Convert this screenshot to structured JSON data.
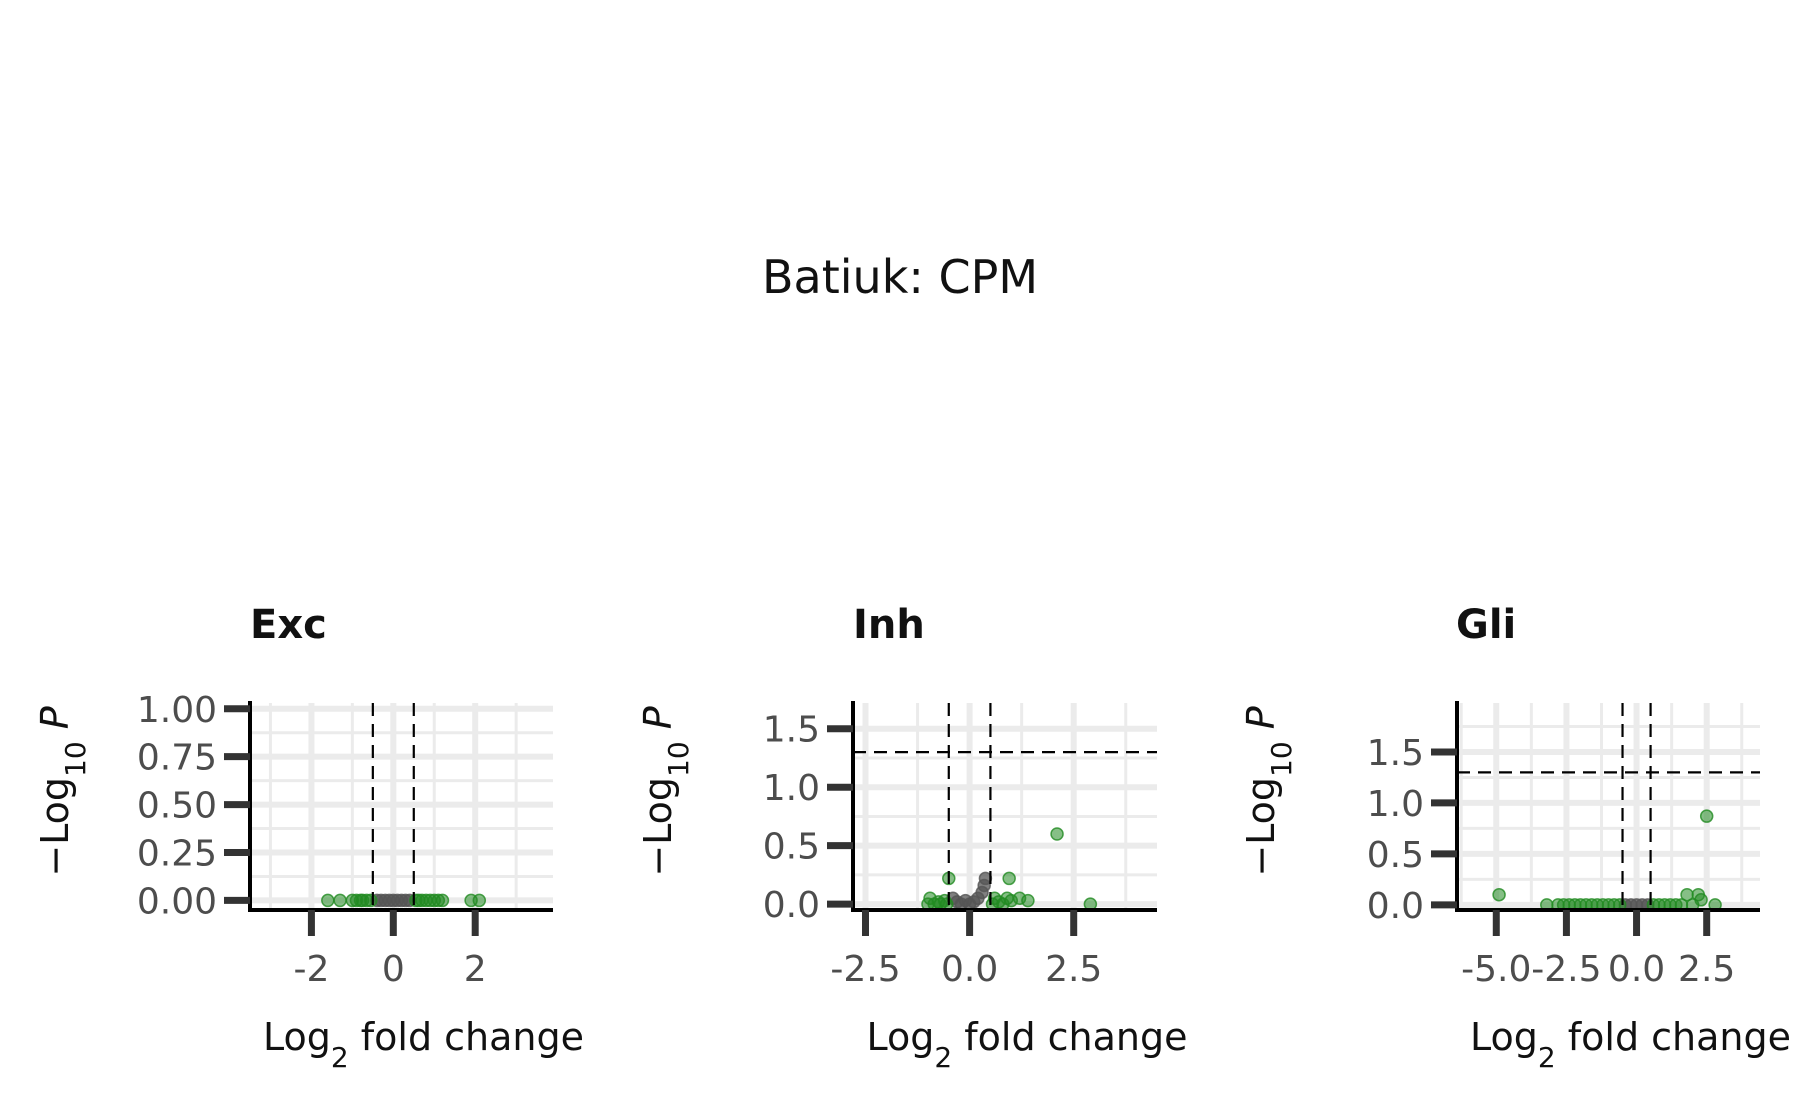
{
  "title": "Batiuk: CPM",
  "colors": {
    "significant": "#228B22",
    "not_significant": "#555555",
    "grid": "#ebebeb",
    "axis": "#000000",
    "tick": "#333333",
    "tick_label": "#4d4d4d",
    "threshold_line": "#000000"
  },
  "chart_data": [
    {
      "type": "scatter",
      "title": "Exc",
      "xlabel": "Log2 fold change",
      "ylabel": "-Log10 P",
      "xlim": [
        -3.5,
        3.9
      ],
      "ylim": [
        -0.05,
        1.03
      ],
      "xticks": [
        -2,
        0,
        2
      ],
      "xtick_labels": [
        "-2",
        "0",
        "2"
      ],
      "yticks": [
        0,
        0.25,
        0.5,
        0.75,
        1.0
      ],
      "ytick_labels": [
        "0.00",
        "0.25",
        "0.50",
        "0.75",
        "1.00"
      ],
      "fc_cutoff": 0.5,
      "p_cutoff_line": null,
      "grid": true,
      "points": [
        {
          "x": -1.6,
          "y": 0,
          "sig": true
        },
        {
          "x": -1.3,
          "y": 0,
          "sig": true
        },
        {
          "x": -1.0,
          "y": 0,
          "sig": true
        },
        {
          "x": -0.9,
          "y": 0,
          "sig": true
        },
        {
          "x": -0.8,
          "y": 0,
          "sig": true
        },
        {
          "x": -0.75,
          "y": 0,
          "sig": true
        },
        {
          "x": -0.65,
          "y": 0,
          "sig": true
        },
        {
          "x": -0.55,
          "y": 0,
          "sig": true
        },
        {
          "x": -0.4,
          "y": 0,
          "sig": false
        },
        {
          "x": -0.3,
          "y": 0,
          "sig": false
        },
        {
          "x": -0.2,
          "y": 0,
          "sig": false
        },
        {
          "x": -0.1,
          "y": 0,
          "sig": false
        },
        {
          "x": 0.0,
          "y": 0,
          "sig": false
        },
        {
          "x": 0.1,
          "y": 0,
          "sig": false
        },
        {
          "x": 0.2,
          "y": 0,
          "sig": false
        },
        {
          "x": 0.3,
          "y": 0,
          "sig": false
        },
        {
          "x": 0.4,
          "y": 0,
          "sig": false
        },
        {
          "x": 0.55,
          "y": 0,
          "sig": true
        },
        {
          "x": 0.62,
          "y": 0,
          "sig": true
        },
        {
          "x": 0.7,
          "y": 0,
          "sig": true
        },
        {
          "x": 0.8,
          "y": 0,
          "sig": true
        },
        {
          "x": 0.9,
          "y": 0,
          "sig": true
        },
        {
          "x": 1.0,
          "y": 0,
          "sig": true
        },
        {
          "x": 1.1,
          "y": 0,
          "sig": true
        },
        {
          "x": 1.2,
          "y": 0,
          "sig": true
        },
        {
          "x": 1.9,
          "y": 0,
          "sig": true
        },
        {
          "x": 2.1,
          "y": 0,
          "sig": true
        }
      ]
    },
    {
      "type": "scatter",
      "title": "Inh",
      "xlabel": "Log2 fold change",
      "ylabel": "-Log10 P",
      "xlim": [
        -2.8,
        4.5
      ],
      "ylim": [
        -0.05,
        1.72
      ],
      "xticks": [
        -2.5,
        0,
        2.5
      ],
      "xtick_labels": [
        "-2.5",
        "0.0",
        "2.5"
      ],
      "yticks": [
        0,
        0.5,
        1.0,
        1.5
      ],
      "ytick_labels": [
        "0.0",
        "0.5",
        "1.0",
        "1.5"
      ],
      "fc_cutoff": 0.5,
      "p_cutoff_line": 1.3,
      "grid": true,
      "points": [
        {
          "x": -1.0,
          "y": 0.0,
          "sig": true
        },
        {
          "x": -0.95,
          "y": 0.05,
          "sig": true
        },
        {
          "x": -0.85,
          "y": 0.0,
          "sig": true
        },
        {
          "x": -0.75,
          "y": 0.02,
          "sig": true
        },
        {
          "x": -0.7,
          "y": 0.0,
          "sig": true
        },
        {
          "x": -0.6,
          "y": 0.03,
          "sig": true
        },
        {
          "x": -0.55,
          "y": 0.0,
          "sig": true
        },
        {
          "x": -0.5,
          "y": 0.22,
          "sig": true
        },
        {
          "x": -0.4,
          "y": 0.05,
          "sig": false
        },
        {
          "x": -0.3,
          "y": 0.02,
          "sig": false
        },
        {
          "x": -0.2,
          "y": 0.0,
          "sig": false
        },
        {
          "x": -0.1,
          "y": 0.03,
          "sig": false
        },
        {
          "x": 0.0,
          "y": 0.0,
          "sig": false
        },
        {
          "x": 0.1,
          "y": 0.02,
          "sig": false
        },
        {
          "x": 0.2,
          "y": 0.05,
          "sig": false
        },
        {
          "x": 0.3,
          "y": 0.1,
          "sig": false
        },
        {
          "x": 0.35,
          "y": 0.16,
          "sig": false
        },
        {
          "x": 0.38,
          "y": 0.22,
          "sig": false
        },
        {
          "x": 0.55,
          "y": 0.0,
          "sig": true
        },
        {
          "x": 0.6,
          "y": 0.05,
          "sig": true
        },
        {
          "x": 0.7,
          "y": 0.02,
          "sig": true
        },
        {
          "x": 0.8,
          "y": 0.0,
          "sig": true
        },
        {
          "x": 0.9,
          "y": 0.05,
          "sig": true
        },
        {
          "x": 1.0,
          "y": 0.03,
          "sig": true
        },
        {
          "x": 0.95,
          "y": 0.22,
          "sig": true
        },
        {
          "x": 1.2,
          "y": 0.05,
          "sig": true
        },
        {
          "x": 1.4,
          "y": 0.03,
          "sig": true
        },
        {
          "x": 2.1,
          "y": 0.6,
          "sig": true
        },
        {
          "x": 2.9,
          "y": 0.0,
          "sig": true
        }
      ]
    },
    {
      "type": "scatter",
      "title": "Gli",
      "xlabel": "Log2 fold change",
      "ylabel": "-Log10 P",
      "xlim": [
        -6.4,
        4.4
      ],
      "ylim": [
        -0.05,
        1.98
      ],
      "xticks": [
        -5,
        -2.5,
        0,
        2.5
      ],
      "xtick_labels": [
        "-5.0",
        "-2.5",
        "0.0",
        "2.5"
      ],
      "yticks": [
        0,
        0.5,
        1.0,
        1.5
      ],
      "ytick_labels": [
        "0.0",
        "0.5",
        "1.0",
        "1.5"
      ],
      "fc_cutoff": 0.5,
      "p_cutoff_line": 1.3,
      "grid": true,
      "points": [
        {
          "x": -4.9,
          "y": 0.1,
          "sig": true
        },
        {
          "x": -3.2,
          "y": 0.0,
          "sig": true
        },
        {
          "x": -2.8,
          "y": 0.0,
          "sig": true
        },
        {
          "x": -2.6,
          "y": 0.0,
          "sig": true
        },
        {
          "x": -2.4,
          "y": 0.0,
          "sig": true
        },
        {
          "x": -2.2,
          "y": 0.0,
          "sig": true
        },
        {
          "x": -2.0,
          "y": 0.0,
          "sig": true
        },
        {
          "x": -1.8,
          "y": 0.0,
          "sig": true
        },
        {
          "x": -1.6,
          "y": 0.0,
          "sig": true
        },
        {
          "x": -1.4,
          "y": 0.0,
          "sig": true
        },
        {
          "x": -1.2,
          "y": 0.0,
          "sig": true
        },
        {
          "x": -1.0,
          "y": 0.0,
          "sig": true
        },
        {
          "x": -0.8,
          "y": 0.0,
          "sig": true
        },
        {
          "x": -0.6,
          "y": 0.0,
          "sig": true
        },
        {
          "x": -0.4,
          "y": 0.0,
          "sig": false
        },
        {
          "x": -0.2,
          "y": 0.0,
          "sig": false
        },
        {
          "x": 0.0,
          "y": 0.0,
          "sig": false
        },
        {
          "x": 0.2,
          "y": 0.0,
          "sig": false
        },
        {
          "x": 0.4,
          "y": 0.0,
          "sig": false
        },
        {
          "x": 0.6,
          "y": 0.0,
          "sig": true
        },
        {
          "x": 0.8,
          "y": 0.0,
          "sig": true
        },
        {
          "x": 1.0,
          "y": 0.0,
          "sig": true
        },
        {
          "x": 1.2,
          "y": 0.0,
          "sig": true
        },
        {
          "x": 1.4,
          "y": 0.0,
          "sig": true
        },
        {
          "x": 1.6,
          "y": 0.0,
          "sig": true
        },
        {
          "x": 1.8,
          "y": 0.1,
          "sig": true
        },
        {
          "x": 2.0,
          "y": 0.0,
          "sig": true
        },
        {
          "x": 2.2,
          "y": 0.1,
          "sig": true
        },
        {
          "x": 2.3,
          "y": 0.05,
          "sig": true
        },
        {
          "x": 2.5,
          "y": 0.87,
          "sig": true
        },
        {
          "x": 2.8,
          "y": 0.0,
          "sig": true
        }
      ]
    }
  ]
}
